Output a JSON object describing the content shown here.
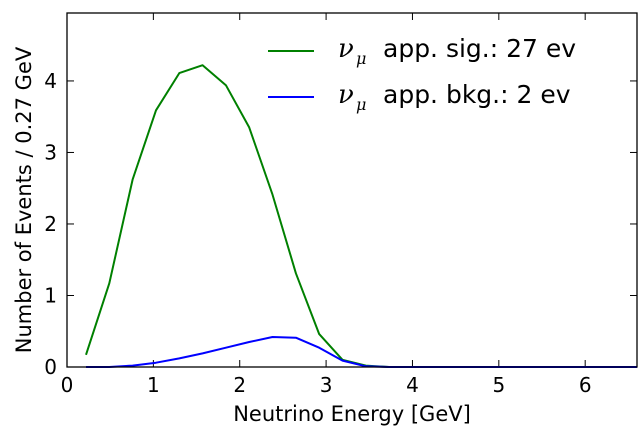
{
  "chart_data": {
    "type": "line",
    "xlabel": "Neutrino Energy [GeV]",
    "ylabel": "Number of Events / 0.27 GeV",
    "xlim": [
      0,
      6.6
    ],
    "ylim": [
      0,
      4.95
    ],
    "xticks": [
      0,
      1,
      2,
      3,
      4,
      5,
      6
    ],
    "yticks": [
      0,
      1,
      2,
      3,
      4
    ],
    "grid": false,
    "legend_placement": "top-right",
    "series": [
      {
        "name_symbol": "ν",
        "name_subscript": "μ",
        "name": "app. sig.: 27 ev",
        "color": "#008000",
        "x": [
          0.22,
          0.49,
          0.76,
          1.03,
          1.3,
          1.57,
          1.84,
          2.11,
          2.38,
          2.65,
          2.92,
          3.19,
          3.46,
          3.73,
          4.0,
          4.5,
          5.0,
          5.5,
          6.0,
          6.6
        ],
        "values": [
          0.17,
          1.17,
          2.62,
          3.59,
          4.11,
          4.22,
          3.94,
          3.35,
          2.41,
          1.31,
          0.46,
          0.1,
          0.02,
          0.0,
          0.0,
          0.0,
          0.0,
          0.0,
          0.0,
          0.0
        ]
      },
      {
        "name_symbol": "ν",
        "name_subscript": "μ",
        "name": "app. bkg.: 2 ev",
        "color": "#0000ff",
        "x": [
          0.22,
          0.49,
          0.76,
          1.03,
          1.3,
          1.57,
          1.84,
          2.11,
          2.38,
          2.65,
          2.92,
          3.19,
          3.46,
          3.73,
          4.0,
          4.5,
          5.0,
          5.5,
          6.0,
          6.6
        ],
        "values": [
          0.0,
          0.0,
          0.02,
          0.06,
          0.12,
          0.19,
          0.27,
          0.35,
          0.42,
          0.41,
          0.27,
          0.09,
          0.01,
          0.0,
          0.0,
          0.0,
          0.0,
          0.0,
          0.0,
          0.0
        ]
      }
    ]
  }
}
